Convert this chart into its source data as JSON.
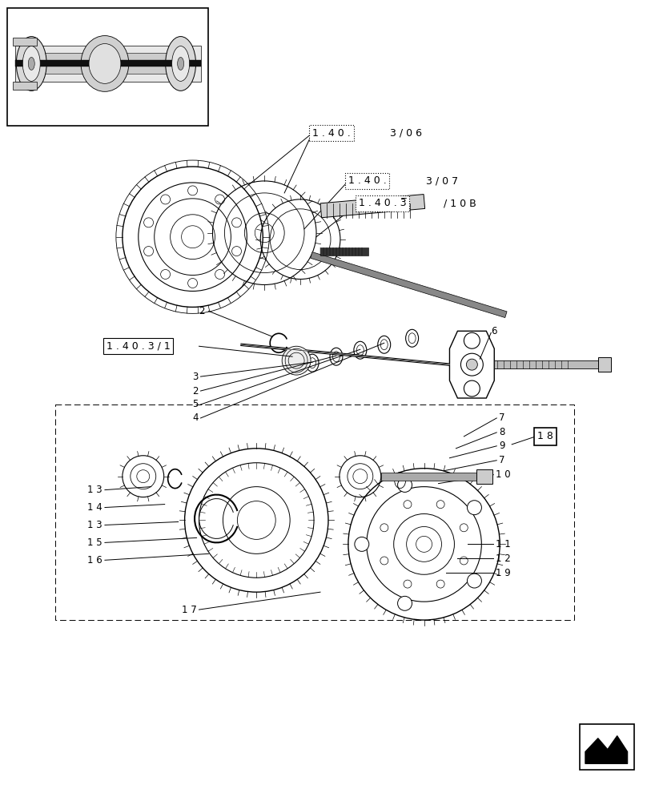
{
  "bg_color": "#ffffff",
  "line_color": "#000000",
  "fig_width": 8.08,
  "fig_height": 10.0,
  "dpi": 100,
  "fs_ref": 9.0,
  "fs_num": 8.5,
  "fs_small": 7.5
}
